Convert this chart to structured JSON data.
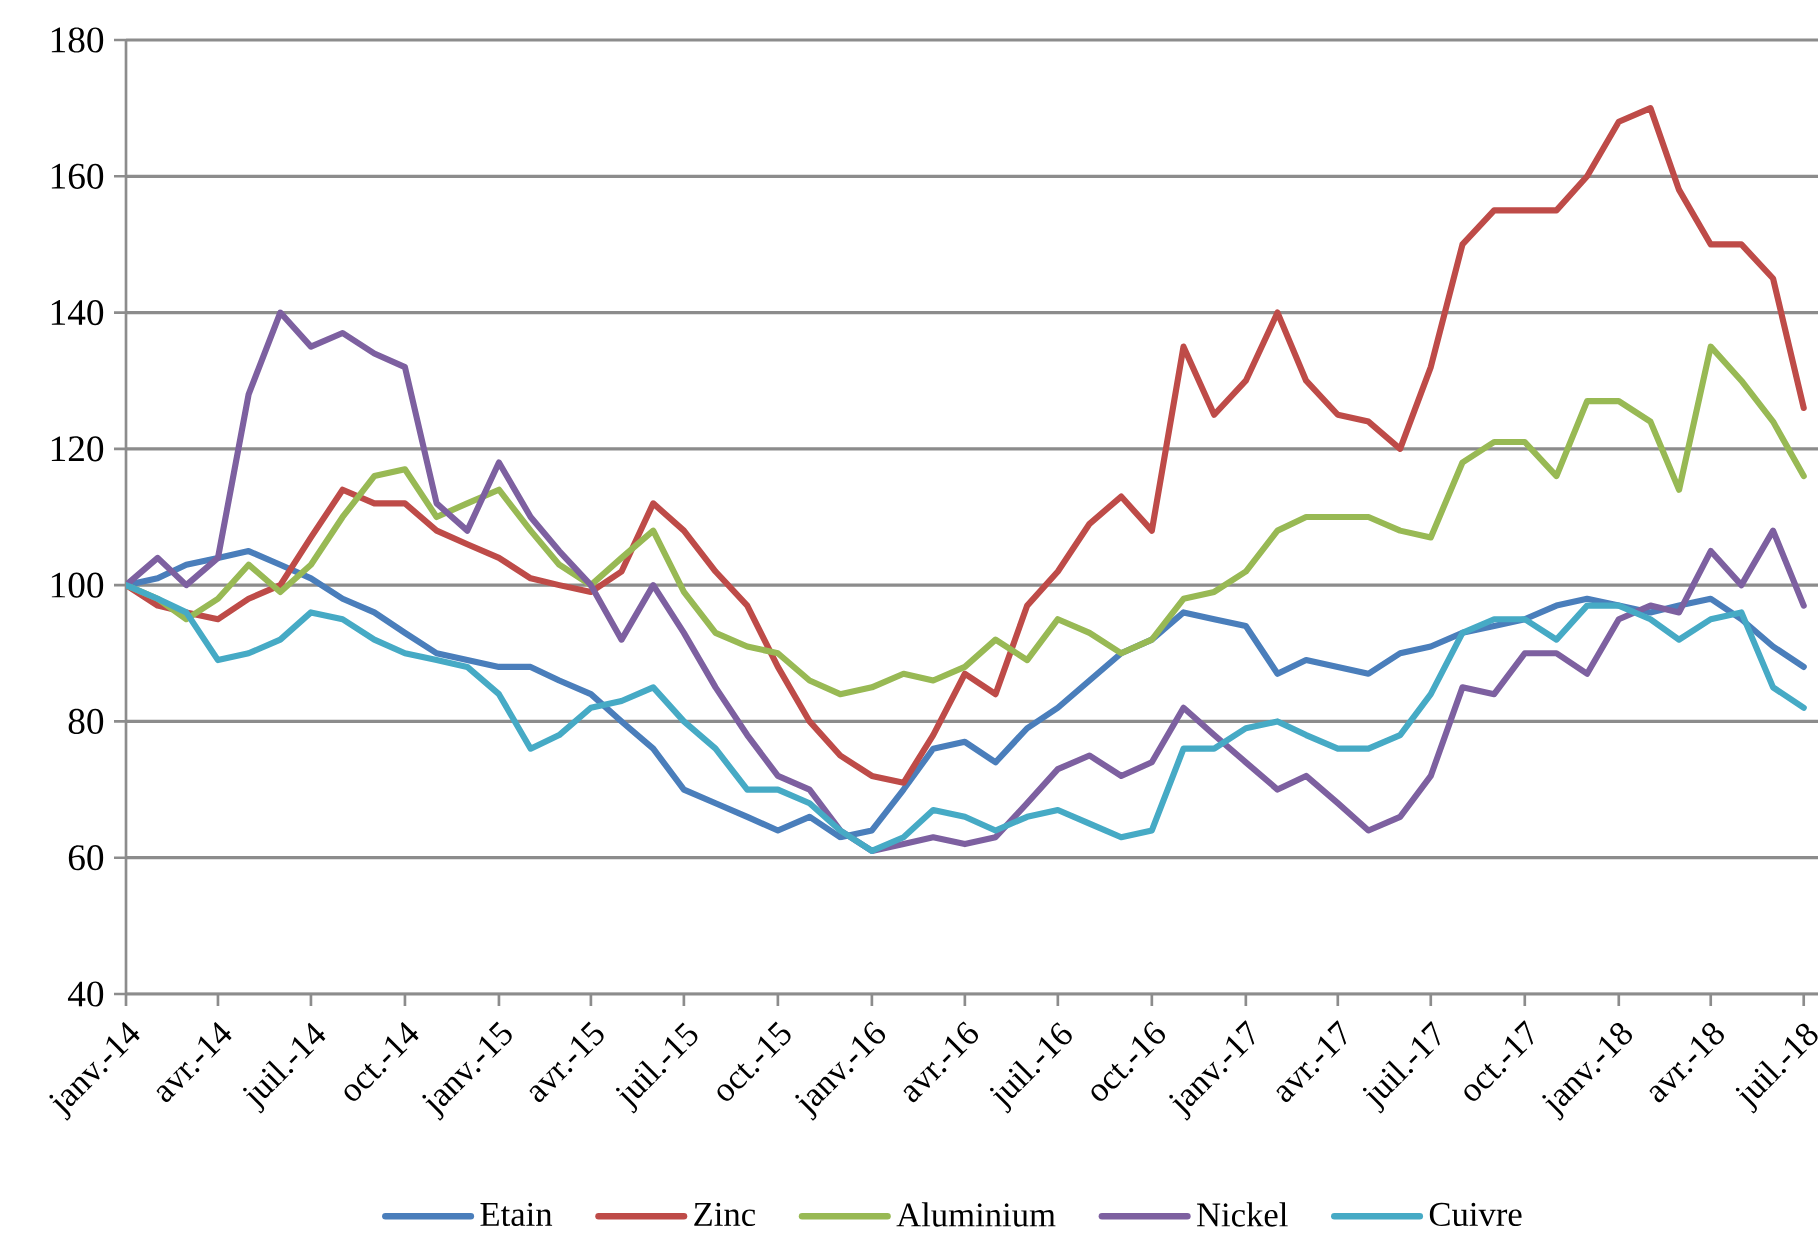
{
  "chart_data": {
    "type": "line",
    "x": [
      "2014-01",
      "2014-02",
      "2014-03",
      "2014-04",
      "2014-05",
      "2014-06",
      "2014-07",
      "2014-08",
      "2014-09",
      "2014-10",
      "2014-11",
      "2014-12",
      "2015-01",
      "2015-02",
      "2015-03",
      "2015-04",
      "2015-05",
      "2015-06",
      "2015-07",
      "2015-08",
      "2015-09",
      "2015-10",
      "2015-11",
      "2015-12",
      "2016-01",
      "2016-02",
      "2016-03",
      "2016-04",
      "2016-05",
      "2016-06",
      "2016-07",
      "2016-08",
      "2016-09",
      "2016-10",
      "2016-11",
      "2016-12",
      "2017-01",
      "2017-02",
      "2017-03",
      "2017-04",
      "2017-05",
      "2017-06",
      "2017-07",
      "2017-08",
      "2017-09",
      "2017-10",
      "2017-11",
      "2017-12",
      "2018-01",
      "2018-02",
      "2018-03",
      "2018-04",
      "2018-05",
      "2018-06",
      "2018-07"
    ],
    "series": [
      {
        "name": "Etain",
        "color": "#4a7ebb",
        "values": [
          100,
          101,
          103,
          104,
          105,
          103,
          101,
          98,
          96,
          93,
          90,
          89,
          88,
          88,
          86,
          84,
          80,
          76,
          70,
          68,
          66,
          64,
          66,
          63,
          64,
          70,
          76,
          77,
          74,
          79,
          82,
          86,
          90,
          92,
          96,
          95,
          94,
          87,
          89,
          88,
          87,
          90,
          91,
          93,
          94,
          95,
          97,
          98,
          97,
          96,
          97,
          98,
          95,
          91,
          88
        ]
      },
      {
        "name": "Zinc",
        "color": "#be4b48",
        "values": [
          100,
          97,
          96,
          95,
          98,
          100,
          107,
          114,
          112,
          112,
          108,
          106,
          104,
          101,
          100,
          99,
          102,
          112,
          108,
          102,
          97,
          88,
          80,
          75,
          72,
          71,
          78,
          87,
          84,
          97,
          102,
          109,
          113,
          108,
          135,
          125,
          130,
          140,
          130,
          125,
          124,
          120,
          132,
          150,
          155,
          155,
          155,
          160,
          168,
          170,
          158,
          150,
          150,
          145,
          126
        ]
      },
      {
        "name": "Aluminium",
        "color": "#98b954",
        "values": [
          100,
          98,
          95,
          98,
          103,
          99,
          103,
          110,
          116,
          117,
          110,
          112,
          114,
          108,
          103,
          100,
          104,
          108,
          99,
          93,
          91,
          90,
          86,
          84,
          85,
          87,
          86,
          88,
          92,
          89,
          95,
          93,
          90,
          92,
          98,
          99,
          102,
          108,
          110,
          110,
          110,
          108,
          107,
          118,
          121,
          121,
          116,
          127,
          127,
          124,
          114,
          135,
          130,
          124,
          116
        ]
      },
      {
        "name": "Nickel",
        "color": "#7d60a0",
        "values": [
          100,
          104,
          100,
          104,
          128,
          140,
          135,
          137,
          134,
          132,
          112,
          108,
          118,
          110,
          105,
          100,
          92,
          100,
          93,
          85,
          78,
          72,
          70,
          64,
          61,
          62,
          63,
          62,
          63,
          68,
          73,
          75,
          72,
          74,
          82,
          78,
          74,
          70,
          72,
          68,
          64,
          66,
          72,
          85,
          84,
          90,
          90,
          87,
          95,
          97,
          96,
          105,
          100,
          108,
          97
        ]
      },
      {
        "name": "Cuivre",
        "color": "#46aac5",
        "values": [
          100,
          98,
          96,
          89,
          90,
          92,
          96,
          95,
          92,
          90,
          89,
          88,
          84,
          76,
          78,
          82,
          83,
          85,
          80,
          76,
          70,
          70,
          68,
          64,
          61,
          63,
          67,
          66,
          64,
          66,
          67,
          65,
          63,
          64,
          76,
          76,
          79,
          80,
          78,
          76,
          76,
          78,
          84,
          93,
          95,
          95,
          92,
          97,
          97,
          95,
          92,
          95,
          96,
          85,
          82
        ]
      }
    ],
    "xlim": [
      "2014-01-01",
      "2018-07-15"
    ],
    "xticks": [
      {
        "value": "2014-01-01",
        "label": "janv.-14"
      },
      {
        "value": "2014-04-01",
        "label": "avr.-14"
      },
      {
        "value": "2014-07-01",
        "label": "juil.-14"
      },
      {
        "value": "2014-10-01",
        "label": "oct.-14"
      },
      {
        "value": "2015-01-01",
        "label": "janv.-15"
      },
      {
        "value": "2015-04-01",
        "label": "avr.-15"
      },
      {
        "value": "2015-07-01",
        "label": "juil.-15"
      },
      {
        "value": "2015-10-01",
        "label": "oct.-15"
      },
      {
        "value": "2016-01-01",
        "label": "janv.-16"
      },
      {
        "value": "2016-04-01",
        "label": "avr.-16"
      },
      {
        "value": "2016-07-01",
        "label": "juil.-16"
      },
      {
        "value": "2016-10-01",
        "label": "oct.-16"
      },
      {
        "value": "2017-01-01",
        "label": "janv.-17"
      },
      {
        "value": "2017-04-01",
        "label": "avr.-17"
      },
      {
        "value": "2017-07-01",
        "label": "juil.-17"
      },
      {
        "value": "2017-10-01",
        "label": "oct.-17"
      },
      {
        "value": "2018-01-01",
        "label": "janv.-18"
      },
      {
        "value": "2018-04-01",
        "label": "avr.-18"
      },
      {
        "value": "2018-07-01",
        "label": "juil.-18"
      }
    ],
    "ylim": [
      40,
      180
    ],
    "yticks": [
      40,
      60,
      80,
      100,
      120,
      140,
      160,
      180
    ],
    "grid": "y",
    "legend": "bottom",
    "marker": "none",
    "line_style": "solid"
  }
}
